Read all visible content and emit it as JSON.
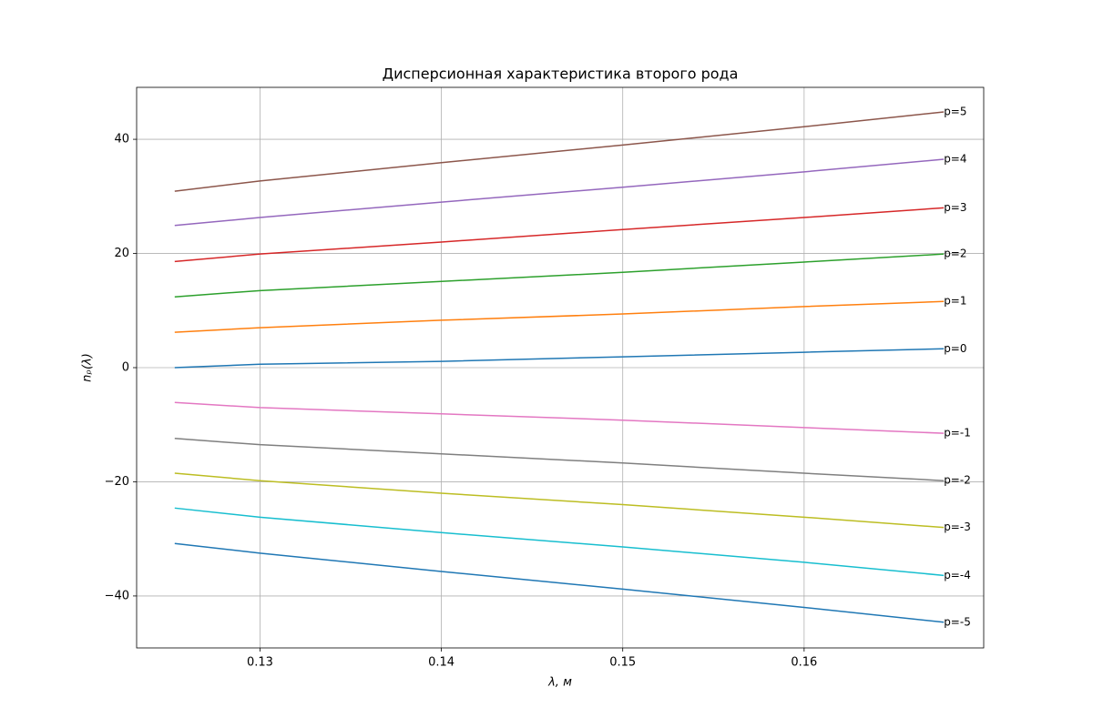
{
  "chart_data": {
    "type": "line",
    "title": "Дисперсионная характеристика второго рода",
    "xlabel": "λ, м",
    "ylabel": "nₚ(λ)",
    "x": [
      0.1253,
      0.13,
      0.14,
      0.15,
      0.16,
      0.1677
    ],
    "xlim": [
      0.1232,
      0.1699
    ],
    "ylim": [
      -49.1,
      49.1
    ],
    "xticks": [
      0.13,
      0.14,
      0.15,
      0.16
    ],
    "yticks": [
      {
        "value": -40,
        "label": "−40"
      },
      {
        "value": -20,
        "label": "−20"
      },
      0,
      20,
      40
    ],
    "grid": true,
    "series": [
      {
        "name": "p=5",
        "color": "#8c564b",
        "values": [
          30.9,
          32.7,
          35.9,
          39.0,
          42.2,
          44.8
        ]
      },
      {
        "name": "p=4",
        "color": "#9467bd",
        "values": [
          24.9,
          26.3,
          29.0,
          31.6,
          34.3,
          36.5
        ]
      },
      {
        "name": "p=3",
        "color": "#d62728",
        "values": [
          18.6,
          19.9,
          22.0,
          24.2,
          26.3,
          28.0
        ]
      },
      {
        "name": "p=2",
        "color": "#2ca02c",
        "values": [
          12.4,
          13.5,
          15.1,
          16.7,
          18.5,
          19.9
        ]
      },
      {
        "name": "p=1",
        "color": "#ff7f0e",
        "values": [
          6.2,
          7.0,
          8.3,
          9.4,
          10.7,
          11.6
        ]
      },
      {
        "name": "p=0",
        "color": "#1f77b4",
        "values": [
          0,
          0.6,
          1.1,
          1.9,
          2.7,
          3.3
        ]
      },
      {
        "name": "p=-1",
        "color": "#e377c2",
        "values": [
          -6.1,
          -7.0,
          -8.1,
          -9.2,
          -10.5,
          -11.5
        ]
      },
      {
        "name": "p=-2",
        "color": "#7f7f7f",
        "values": [
          -12.4,
          -13.5,
          -15.1,
          -16.7,
          -18.5,
          -19.8
        ]
      },
      {
        "name": "p=-3",
        "color": "#bcbd22",
        "values": [
          -18.5,
          -19.8,
          -22.0,
          -24.0,
          -26.2,
          -28.0
        ]
      },
      {
        "name": "p=-4",
        "color": "#17becf",
        "values": [
          -24.6,
          -26.2,
          -28.9,
          -31.4,
          -34.1,
          -36.4
        ]
      },
      {
        "name": "p=-5",
        "color": "#1f77b4",
        "values": [
          -30.8,
          -32.5,
          -35.7,
          -38.8,
          -42.0,
          -44.6
        ]
      }
    ]
  }
}
